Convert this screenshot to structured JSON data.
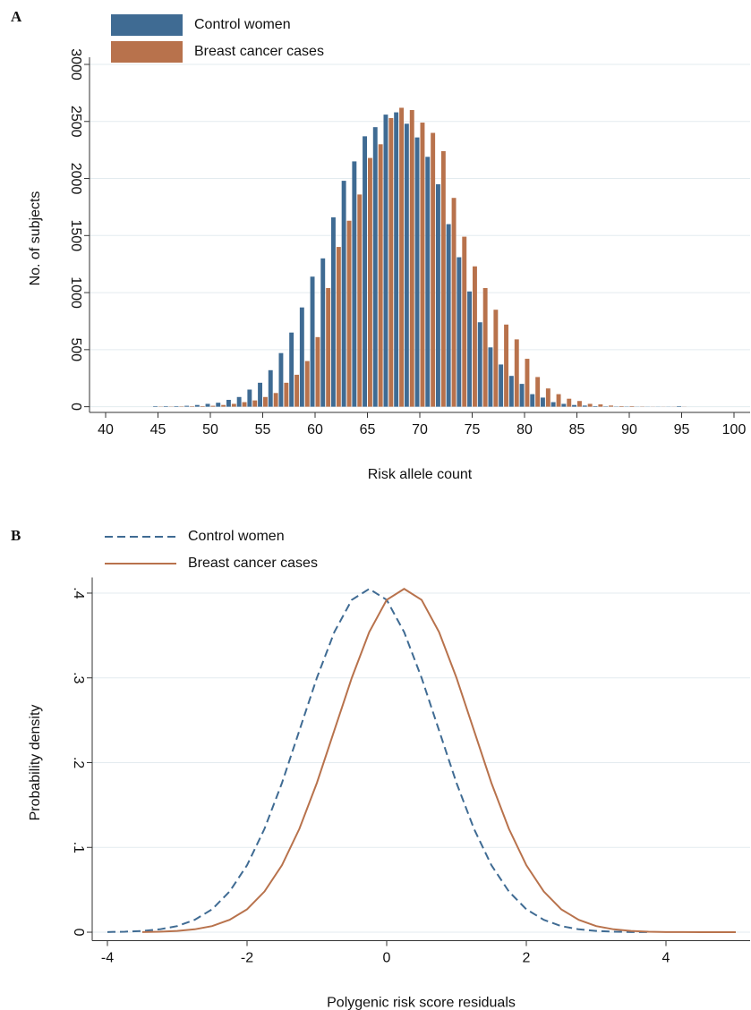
{
  "chart_data": [
    {
      "type": "bar",
      "panel_label": "A",
      "xlabel": "Risk allele count",
      "ylabel": "No. of subjects",
      "x": [
        45,
        46,
        47,
        48,
        49,
        50,
        51,
        52,
        53,
        54,
        55,
        56,
        57,
        58,
        59,
        60,
        61,
        62,
        63,
        64,
        65,
        66,
        67,
        68,
        69,
        70,
        71,
        72,
        73,
        74,
        75,
        76,
        77,
        78,
        79,
        80,
        81,
        82,
        83,
        84,
        85,
        86,
        87,
        88,
        89,
        90,
        91,
        92,
        93,
        94,
        95
      ],
      "series": [
        {
          "name": "Control women",
          "color": "#3f6b93",
          "values": [
            5,
            5,
            5,
            8,
            15,
            25,
            35,
            60,
            85,
            150,
            210,
            320,
            470,
            650,
            870,
            1140,
            1300,
            1660,
            1980,
            2150,
            2370,
            2450,
            2560,
            2580,
            2480,
            2360,
            2190,
            1950,
            1600,
            1310,
            1010,
            740,
            520,
            370,
            270,
            200,
            110,
            80,
            40,
            25,
            15,
            10,
            5,
            3,
            2,
            2,
            1,
            1,
            1,
            1,
            5
          ]
        },
        {
          "name": "Breast cancer cases",
          "color": "#b8724c",
          "values": [
            2,
            2,
            3,
            4,
            5,
            8,
            15,
            25,
            40,
            55,
            85,
            120,
            210,
            280,
            400,
            610,
            1040,
            1400,
            1630,
            1860,
            2180,
            2300,
            2530,
            2620,
            2600,
            2490,
            2400,
            2240,
            1830,
            1490,
            1230,
            1040,
            850,
            720,
            590,
            420,
            260,
            160,
            110,
            70,
            50,
            25,
            20,
            10,
            5,
            5,
            2,
            1,
            1,
            1,
            1
          ]
        }
      ],
      "xlim": [
        40,
        100
      ],
      "xticks": [
        40,
        45,
        50,
        55,
        60,
        65,
        70,
        75,
        80,
        85,
        90,
        95,
        100
      ],
      "ylim": [
        -50,
        3000
      ],
      "yticks": [
        0,
        500,
        1000,
        1500,
        2000,
        2500,
        3000
      ],
      "grid": true,
      "legend": "top-left"
    },
    {
      "type": "line",
      "panel_label": "B",
      "xlabel": "Polygenic risk score residuals",
      "ylabel": "Probability density",
      "x": [
        -4,
        -3.75,
        -3.5,
        -3.25,
        -3,
        -2.75,
        -2.5,
        -2.25,
        -2,
        -1.75,
        -1.5,
        -1.25,
        -1,
        -0.75,
        -0.5,
        -0.25,
        0,
        0.25,
        0.5,
        0.75,
        1,
        1.25,
        1.5,
        1.75,
        2,
        2.25,
        2.5,
        2.75,
        3,
        3.25,
        3.5,
        3.75,
        4,
        4.25,
        4.5,
        4.75,
        5
      ],
      "series": [
        {
          "name": "Control women",
          "color": "#3f6b93",
          "dashed": true,
          "values": [
            0.0002,
            0.0006,
            0.0015,
            0.0034,
            0.0072,
            0.0146,
            0.027,
            0.048,
            0.079,
            0.122,
            0.176,
            0.238,
            0.3,
            0.354,
            0.392,
            0.405,
            0.392,
            0.354,
            0.3,
            0.238,
            0.176,
            0.122,
            0.079,
            0.048,
            0.027,
            0.0146,
            0.0072,
            0.0034,
            0.0015,
            0.0006,
            0.0002,
            0.0001,
            null,
            null,
            null,
            null,
            null
          ]
        },
        {
          "name": "Breast cancer cases",
          "color": "#b8724c",
          "dashed": false,
          "values": [
            null,
            null,
            0.0002,
            0.0006,
            0.0015,
            0.0034,
            0.0072,
            0.0146,
            0.027,
            0.048,
            0.079,
            0.122,
            0.176,
            0.238,
            0.3,
            0.354,
            0.392,
            0.405,
            0.392,
            0.354,
            0.3,
            0.238,
            0.176,
            0.122,
            0.079,
            0.048,
            0.027,
            0.0146,
            0.0072,
            0.0034,
            0.0015,
            0.0006,
            0.0002,
            0.0001,
            0,
            0,
            0
          ]
        }
      ],
      "xlim": [
        -4,
        5
      ],
      "xticks": [
        -4,
        -2,
        0,
        2,
        4
      ],
      "ylim": [
        -0.01,
        0.41
      ],
      "yticks": [
        0,
        {
          "value": 0.1,
          "label": ".1"
        },
        {
          "value": 0.2,
          "label": ".2"
        },
        {
          "value": 0.3,
          "label": ".3"
        },
        {
          "value": 0.4,
          "label": ".4"
        }
      ],
      "grid": true,
      "legend": "top-left"
    }
  ]
}
